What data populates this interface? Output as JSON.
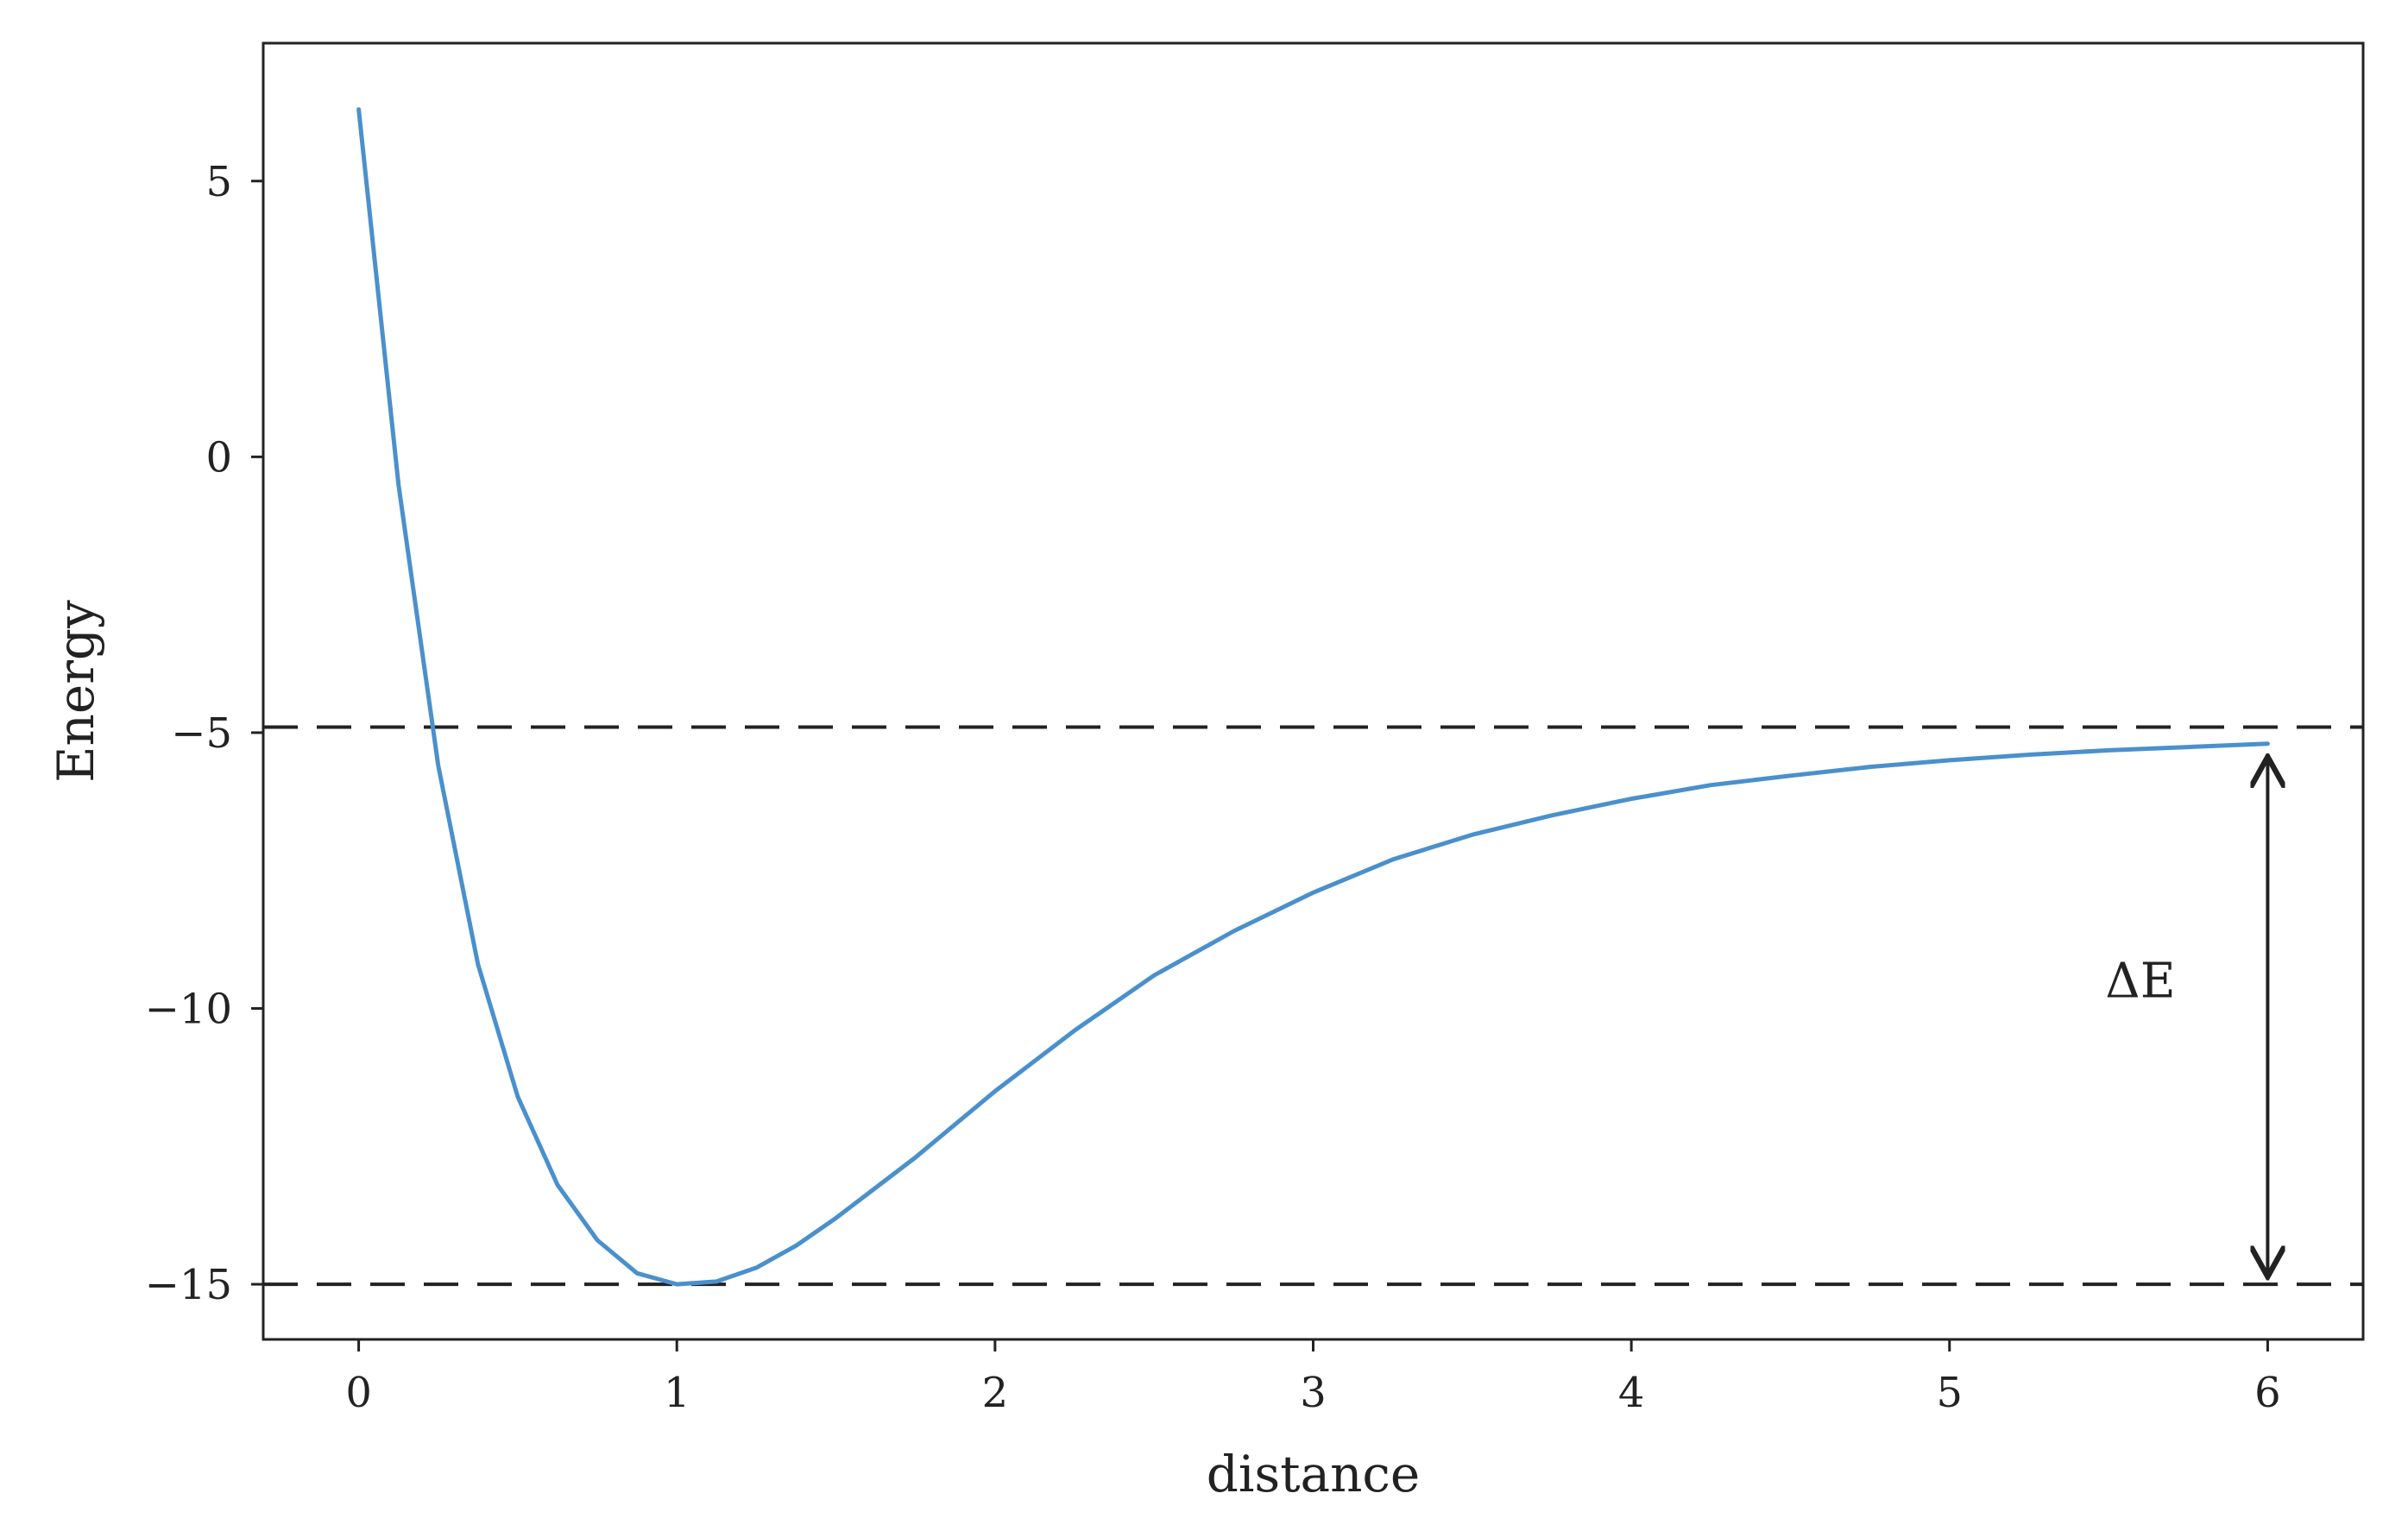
{
  "chart_data": {
    "type": "line",
    "title": "",
    "xlabel": "distance",
    "ylabel": "Energy",
    "xlim": [
      -0.3,
      6.3
    ],
    "ylim": [
      -16.0,
      7.5
    ],
    "x_ticks": [
      0,
      1,
      2,
      3,
      4,
      5,
      6
    ],
    "x_tick_labels": [
      "0",
      "1",
      "2",
      "3",
      "4",
      "5",
      "6"
    ],
    "y_ticks": [
      5,
      0,
      -5,
      -10,
      -15
    ],
    "y_tick_labels": [
      "5",
      "0",
      "−5",
      "−10",
      "−15"
    ],
    "grid": false,
    "series": [
      {
        "color": "#4a90cc",
        "x": [
          0.0,
          0.125,
          0.25,
          0.375,
          0.5,
          0.625,
          0.75,
          0.875,
          1.0,
          1.125,
          1.25,
          1.375,
          1.5,
          1.75,
          2.0,
          2.25,
          2.5,
          2.75,
          3.0,
          3.25,
          3.5,
          3.75,
          4.0,
          4.25,
          4.5,
          4.75,
          5.0,
          5.25,
          5.5,
          5.75,
          6.0
        ],
        "y": [
          6.3,
          -0.5,
          -5.6,
          -9.2,
          -11.6,
          -13.2,
          -14.2,
          -14.8,
          -15.0,
          -14.95,
          -14.7,
          -14.3,
          -13.8,
          -12.7,
          -11.5,
          -10.4,
          -9.4,
          -8.6,
          -7.9,
          -7.3,
          -6.85,
          -6.5,
          -6.2,
          -5.95,
          -5.78,
          -5.62,
          -5.5,
          -5.4,
          -5.32,
          -5.26,
          -5.2
        ]
      }
    ],
    "reference_lines": [
      {
        "y": -4.9,
        "style": "dashed",
        "color": "#222222"
      },
      {
        "y": -15.0,
        "style": "dashed",
        "color": "#222222"
      }
    ],
    "annotation": {
      "label": "ΔE",
      "arrow_x": 6.0,
      "arrow_y_from": -5.5,
      "arrow_y_to": -14.8,
      "label_x": 5.6,
      "label_y": -9.8
    }
  }
}
